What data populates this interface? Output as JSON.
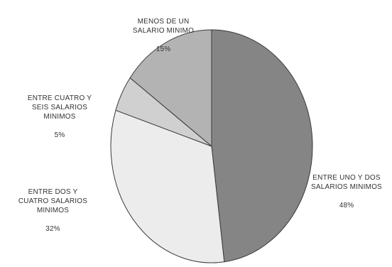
{
  "chart_data": {
    "type": "pie",
    "categories": [
      "ENTRE UNO Y DOS\nSALARIOS MINIMOS",
      "ENTRE DOS Y\nCUATRO SALARIOS\nMINIMOS",
      "ENTRE CUATRO Y\nSEIS SALARIOS\nMINIMOS",
      "MENOS DE UN\nSALARIO MINIMO"
    ],
    "values": [
      48,
      32,
      5,
      15
    ],
    "value_labels": [
      "48%",
      "32%",
      "5%",
      "15%"
    ],
    "colors": [
      "#858585",
      "#ececec",
      "#d0d0d0",
      "#b3b3b3"
    ],
    "start_angle_deg": 0,
    "direction": "clockwise",
    "title": ""
  }
}
